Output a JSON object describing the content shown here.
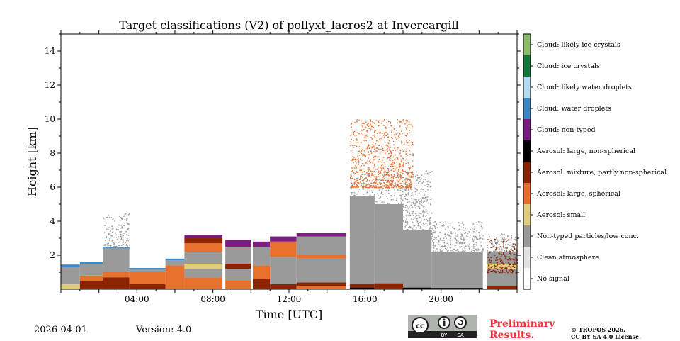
{
  "chart_data": {
    "type": "heatmap",
    "title": "Target classifications (V2) of pollyxt_lacros2 at Invercargill",
    "xlabel": "Time [UTC]",
    "ylabel": "Height [km]",
    "xlim_hours": [
      0,
      24
    ],
    "ylim": [
      0,
      15
    ],
    "x_ticks": [
      {
        "v": 4,
        "label": "04:00"
      },
      {
        "v": 8,
        "label": "08:00"
      },
      {
        "v": 12,
        "label": "12:00"
      },
      {
        "v": 16,
        "label": "16:00"
      },
      {
        "v": 20,
        "label": "20:00"
      }
    ],
    "y_ticks": [
      {
        "v": 2,
        "label": "2"
      },
      {
        "v": 4,
        "label": "4"
      },
      {
        "v": 6,
        "label": "6"
      },
      {
        "v": 8,
        "label": "8"
      },
      {
        "v": 10,
        "label": "10"
      },
      {
        "v": 12,
        "label": "12"
      },
      {
        "v": 14,
        "label": "14"
      }
    ],
    "classes": [
      {
        "id": 0,
        "label": "No signal",
        "color": "#ffffff"
      },
      {
        "id": 1,
        "label": "Clean atmosphere",
        "color": "#e5e5e5"
      },
      {
        "id": 2,
        "label": "Non-typed particles/low conc.",
        "color": "#9a9a9a"
      },
      {
        "id": 3,
        "label": "Aerosol: small",
        "color": "#e1cc7b"
      },
      {
        "id": 4,
        "label": "Aerosol: large, spherical",
        "color": "#e8702f"
      },
      {
        "id": 5,
        "label": "Aerosol: mixture, partly non-spherical",
        "color": "#8b2500"
      },
      {
        "id": 6,
        "label": "Aerosol: large, non-spherical",
        "color": "#000000"
      },
      {
        "id": 7,
        "label": "Cloud: non-typed",
        "color": "#7b1e82"
      },
      {
        "id": 8,
        "label": "Cloud: water droplets",
        "color": "#3a89c9"
      },
      {
        "id": 9,
        "label": "Cloud: likely water droplets",
        "color": "#b5dcf3"
      },
      {
        "id": 10,
        "label": "Cloud: ice crystals",
        "color": "#127a3a"
      },
      {
        "id": 11,
        "label": "Cloud: likely ice crystals",
        "color": "#8dbe6a"
      }
    ],
    "segments": [
      {
        "t": [
          0,
          1.0
        ],
        "layers": [
          [
            3,
            0,
            0.3
          ],
          [
            2,
            0.3,
            1.3
          ],
          [
            8,
            1.3,
            1.45
          ]
        ]
      },
      {
        "t": [
          1.0,
          2.2
        ],
        "layers": [
          [
            5,
            0,
            0.5
          ],
          [
            4,
            0.5,
            0.8
          ],
          [
            2,
            0.8,
            1.5
          ],
          [
            8,
            1.5,
            1.6
          ]
        ]
      },
      {
        "t": [
          2.2,
          3.6
        ],
        "layers": [
          [
            5,
            0,
            0.7
          ],
          [
            4,
            0.7,
            1.0
          ],
          [
            2,
            1.0,
            2.4
          ],
          [
            8,
            2.4,
            2.5
          ]
        ]
      },
      {
        "t": [
          3.6,
          5.5
        ],
        "layers": [
          [
            5,
            0,
            0.3
          ],
          [
            4,
            0.3,
            1.0
          ],
          [
            2,
            1.0,
            1.15
          ],
          [
            8,
            1.15,
            1.25
          ]
        ]
      },
      {
        "t": [
          5.5,
          6.5
        ],
        "layers": [
          [
            4,
            0,
            1.4
          ],
          [
            2,
            1.4,
            1.7
          ],
          [
            8,
            1.7,
            1.8
          ]
        ]
      },
      {
        "t": [
          6.5,
          8.5
        ],
        "layers": [
          [
            4,
            0,
            0.7
          ],
          [
            2,
            0.7,
            1.2
          ],
          [
            3,
            1.2,
            1.5
          ],
          [
            2,
            1.5,
            2.2
          ],
          [
            4,
            2.2,
            2.7
          ],
          [
            5,
            2.7,
            3.0
          ],
          [
            7,
            3.0,
            3.2
          ]
        ]
      },
      {
        "t": [
          8.65,
          10.0
        ],
        "layers": [
          [
            4,
            0,
            0.5
          ],
          [
            2,
            0.5,
            1.2
          ],
          [
            5,
            1.2,
            1.5
          ],
          [
            2,
            1.5,
            2.5
          ],
          [
            7,
            2.5,
            2.9
          ]
        ]
      },
      {
        "t": [
          10.1,
          11.0
        ],
        "layers": [
          [
            5,
            0,
            0.6
          ],
          [
            4,
            0.6,
            1.4
          ],
          [
            2,
            1.4,
            2.5
          ],
          [
            7,
            2.5,
            2.8
          ]
        ]
      },
      {
        "t": [
          11.0,
          12.4
        ],
        "layers": [
          [
            5,
            0,
            0.3
          ],
          [
            2,
            0.3,
            1.9
          ],
          [
            4,
            1.9,
            2.8
          ],
          [
            7,
            2.8,
            3.1
          ]
        ]
      },
      {
        "t": [
          12.4,
          15.0
        ],
        "layers": [
          [
            4,
            0,
            0.2
          ],
          [
            5,
            0.2,
            0.4
          ],
          [
            2,
            0.4,
            1.8
          ],
          [
            4,
            1.8,
            2.0
          ],
          [
            2,
            2.0,
            3.1
          ],
          [
            7,
            3.1,
            3.3
          ]
        ]
      },
      {
        "t": [
          15.2,
          16.5
        ],
        "layers": [
          [
            6,
            0,
            0.1
          ],
          [
            5,
            0.1,
            0.3
          ],
          [
            2,
            0.3,
            5.5
          ]
        ]
      },
      {
        "t": [
          16.5,
          18.0
        ],
        "layers": [
          [
            5,
            0,
            0.35
          ],
          [
            2,
            0.35,
            5.0
          ]
        ]
      },
      {
        "t": [
          18.0,
          19.5
        ],
        "layers": [
          [
            6,
            0,
            0.1
          ],
          [
            2,
            0.1,
            3.5
          ]
        ]
      },
      {
        "t": [
          19.5,
          22.2
        ],
        "layers": [
          [
            6,
            0,
            0.08
          ],
          [
            2,
            0.08,
            2.2
          ]
        ]
      },
      {
        "t": [
          22.4,
          24
        ],
        "layers": [
          [
            5,
            0,
            0.2
          ],
          [
            2,
            0.2,
            2.2
          ],
          [
            3,
            1.2,
            1.5
          ]
        ]
      }
    ],
    "speckle": [
      {
        "t": [
          2.2,
          3.6
        ],
        "h": [
          2.4,
          4.5
        ],
        "cls": 2
      },
      {
        "t": [
          15.2,
          19.5
        ],
        "h": [
          3,
          7
        ],
        "cls": 2
      },
      {
        "t": [
          15.2,
          18.5
        ],
        "h": [
          6,
          10
        ],
        "cls": 4
      },
      {
        "t": [
          19.5,
          22.2
        ],
        "h": [
          2.2,
          4
        ],
        "cls": 2
      },
      {
        "t": [
          22.4,
          24
        ],
        "h": [
          2.2,
          3.3
        ],
        "cls": 2
      },
      {
        "t": [
          22.4,
          24
        ],
        "h": [
          1.0,
          3.0
        ],
        "cls": 5
      }
    ]
  },
  "footer": {
    "date": "2026-04-01",
    "version": "Version: 4.0",
    "preliminary": [
      "Preliminary",
      "Results."
    ],
    "copyright": [
      "© TROPOS 2026.",
      "CC BY SA 4.0 License."
    ],
    "license_badge": "CC BY SA"
  }
}
